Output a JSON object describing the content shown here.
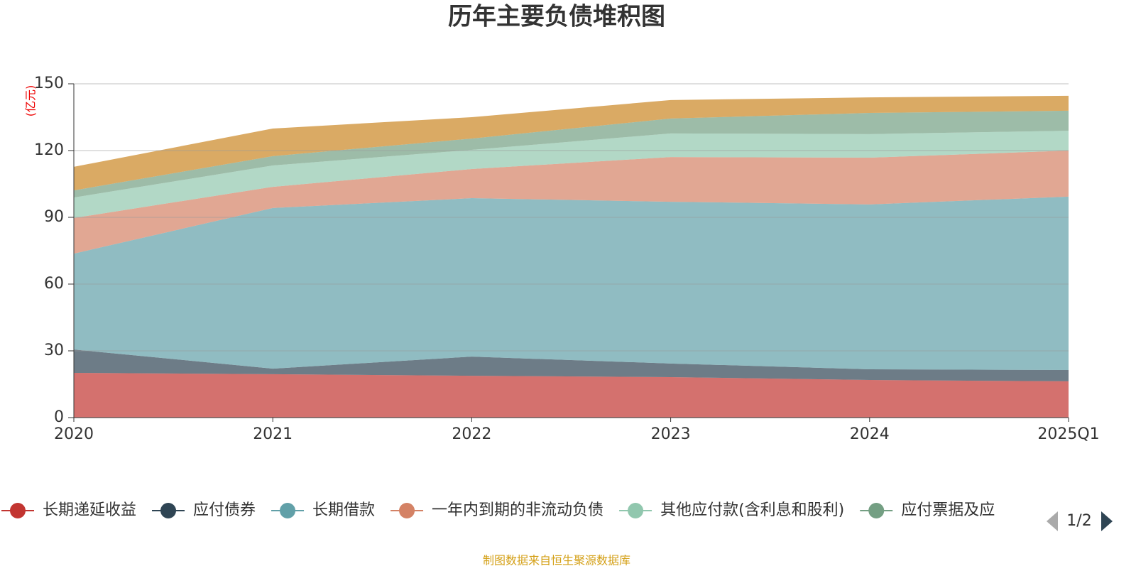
{
  "chart_data": {
    "type": "area",
    "stacked": true,
    "title": "历年主要负债堆积图",
    "y_label": "(亿元)",
    "source": "制图数据来自恒生聚源数据库",
    "legend_page": "1/2",
    "categories": [
      "2020",
      "2021",
      "2022",
      "2023",
      "2024",
      "2025Q1"
    ],
    "ylim": [
      0,
      150
    ],
    "yticks": [
      0,
      30,
      60,
      90,
      120,
      150
    ],
    "grid": true,
    "series": [
      {
        "name": "长期递延收益",
        "color": "#c23531",
        "values": [
          20.1,
          19.5,
          18.8,
          18.2,
          16.9,
          16.3
        ]
      },
      {
        "name": "应付债券",
        "color": "#2f4554",
        "values": [
          10.5,
          2.5,
          8.6,
          6.1,
          4.8,
          5.1
        ]
      },
      {
        "name": "长期借款",
        "color": "#61a0a8",
        "values": [
          43.1,
          72.2,
          71.2,
          72.7,
          74.1,
          77.9
        ]
      },
      {
        "name": "一年内到期的非流动负债",
        "color": "#d48265",
        "values": [
          16.0,
          9.5,
          13.1,
          20.1,
          21.0,
          20.7
        ]
      },
      {
        "name": "其他应付款(含利息和股利)",
        "color": "#91c7ae",
        "values": [
          9.2,
          9.6,
          8.6,
          10.6,
          10.6,
          8.9
        ]
      },
      {
        "name": "应付票据及应",
        "color": "#749f83",
        "values": [
          3.2,
          4.2,
          5.1,
          6.7,
          9.5,
          9.0
        ]
      },
      {
        "color": "#ca8622",
        "values": [
          10.6,
          12.4,
          9.6,
          8.3,
          7.0,
          6.7
        ]
      }
    ]
  }
}
